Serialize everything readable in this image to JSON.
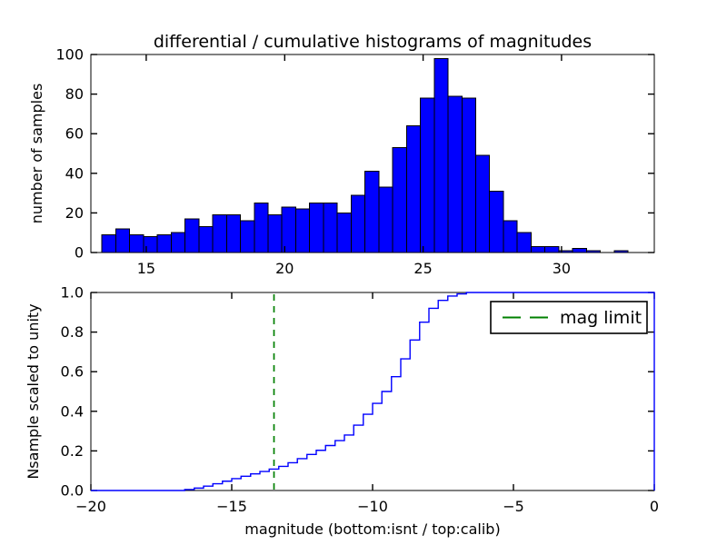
{
  "figure": {
    "title": "differential / cumulative histograms of magnitudes",
    "xlabel": "magnitude (bottom:isnt / top:calib)",
    "background_color": "#ffffff",
    "axes_color": "#000000"
  },
  "legend": {
    "label": "mag limit",
    "position": "upper right",
    "line_color": "#008000",
    "line_style": "dashed"
  },
  "chart_data": [
    {
      "id": "top",
      "type": "bar",
      "subtype": "differential histogram",
      "ylabel": "number of samples",
      "xlim": [
        13.0,
        33.35
      ],
      "ylim": [
        0,
        100
      ],
      "xticks": [
        15,
        20,
        25,
        30
      ],
      "xtick_labels": [
        "15",
        "20",
        "25",
        "30"
      ],
      "yticks": [
        0,
        20,
        40,
        60,
        80,
        100
      ],
      "ytick_labels": [
        "0",
        "20",
        "40",
        "60",
        "80",
        "100"
      ],
      "grid": false,
      "bin_start": 13.4,
      "bin_width": 0.5,
      "counts": [
        9,
        12,
        9,
        8,
        9,
        10,
        17,
        13,
        19,
        19,
        16,
        25,
        19,
        23,
        22,
        25,
        25,
        20,
        29,
        41,
        33,
        53,
        64,
        78,
        98,
        79,
        78,
        49,
        31,
        16,
        10,
        3,
        3,
        1,
        2,
        1,
        0,
        1,
        0,
        0
      ],
      "bar_color": "#0000ff",
      "bar_edge_color": "#000000"
    },
    {
      "id": "bottom",
      "type": "line",
      "subtype": "cumulative histogram (step)",
      "ylabel": "Nsample scaled to unity",
      "xlim": [
        -20,
        0
      ],
      "ylim": [
        0,
        1
      ],
      "xticks": [
        -20,
        -15,
        -10,
        -5,
        0
      ],
      "xtick_labels": [
        "−20",
        "−15",
        "−10",
        "−5",
        "0"
      ],
      "yticks": [
        0,
        0.2,
        0.4,
        0.6,
        0.8,
        1.0
      ],
      "ytick_labels": [
        "0.0",
        "0.2",
        "0.4",
        "0.6",
        "0.8",
        "1.0"
      ],
      "grid": false,
      "line_color": "#0000ff",
      "step_edges": [
        -16.67,
        -16.33,
        -16.0,
        -15.67,
        -15.33,
        -15.0,
        -14.67,
        -14.33,
        -14.0,
        -13.67,
        -13.33,
        -13.0,
        -12.67,
        -12.33,
        -12.0,
        -11.67,
        -11.33,
        -11.0,
        -10.67,
        -10.33,
        -10.0,
        -9.67,
        -9.33,
        -9.0,
        -8.67,
        -8.33,
        -8.0,
        -7.67,
        -7.33,
        -7.0,
        -6.67
      ],
      "cumulative": [
        0.005,
        0.012,
        0.022,
        0.034,
        0.047,
        0.06,
        0.072,
        0.084,
        0.096,
        0.108,
        0.122,
        0.14,
        0.161,
        0.182,
        0.203,
        0.227,
        0.252,
        0.28,
        0.33,
        0.385,
        0.44,
        0.5,
        0.575,
        0.665,
        0.76,
        0.85,
        0.92,
        0.96,
        0.982,
        0.993,
        1.0
      ],
      "mag_limit_x": -13.5
    }
  ]
}
